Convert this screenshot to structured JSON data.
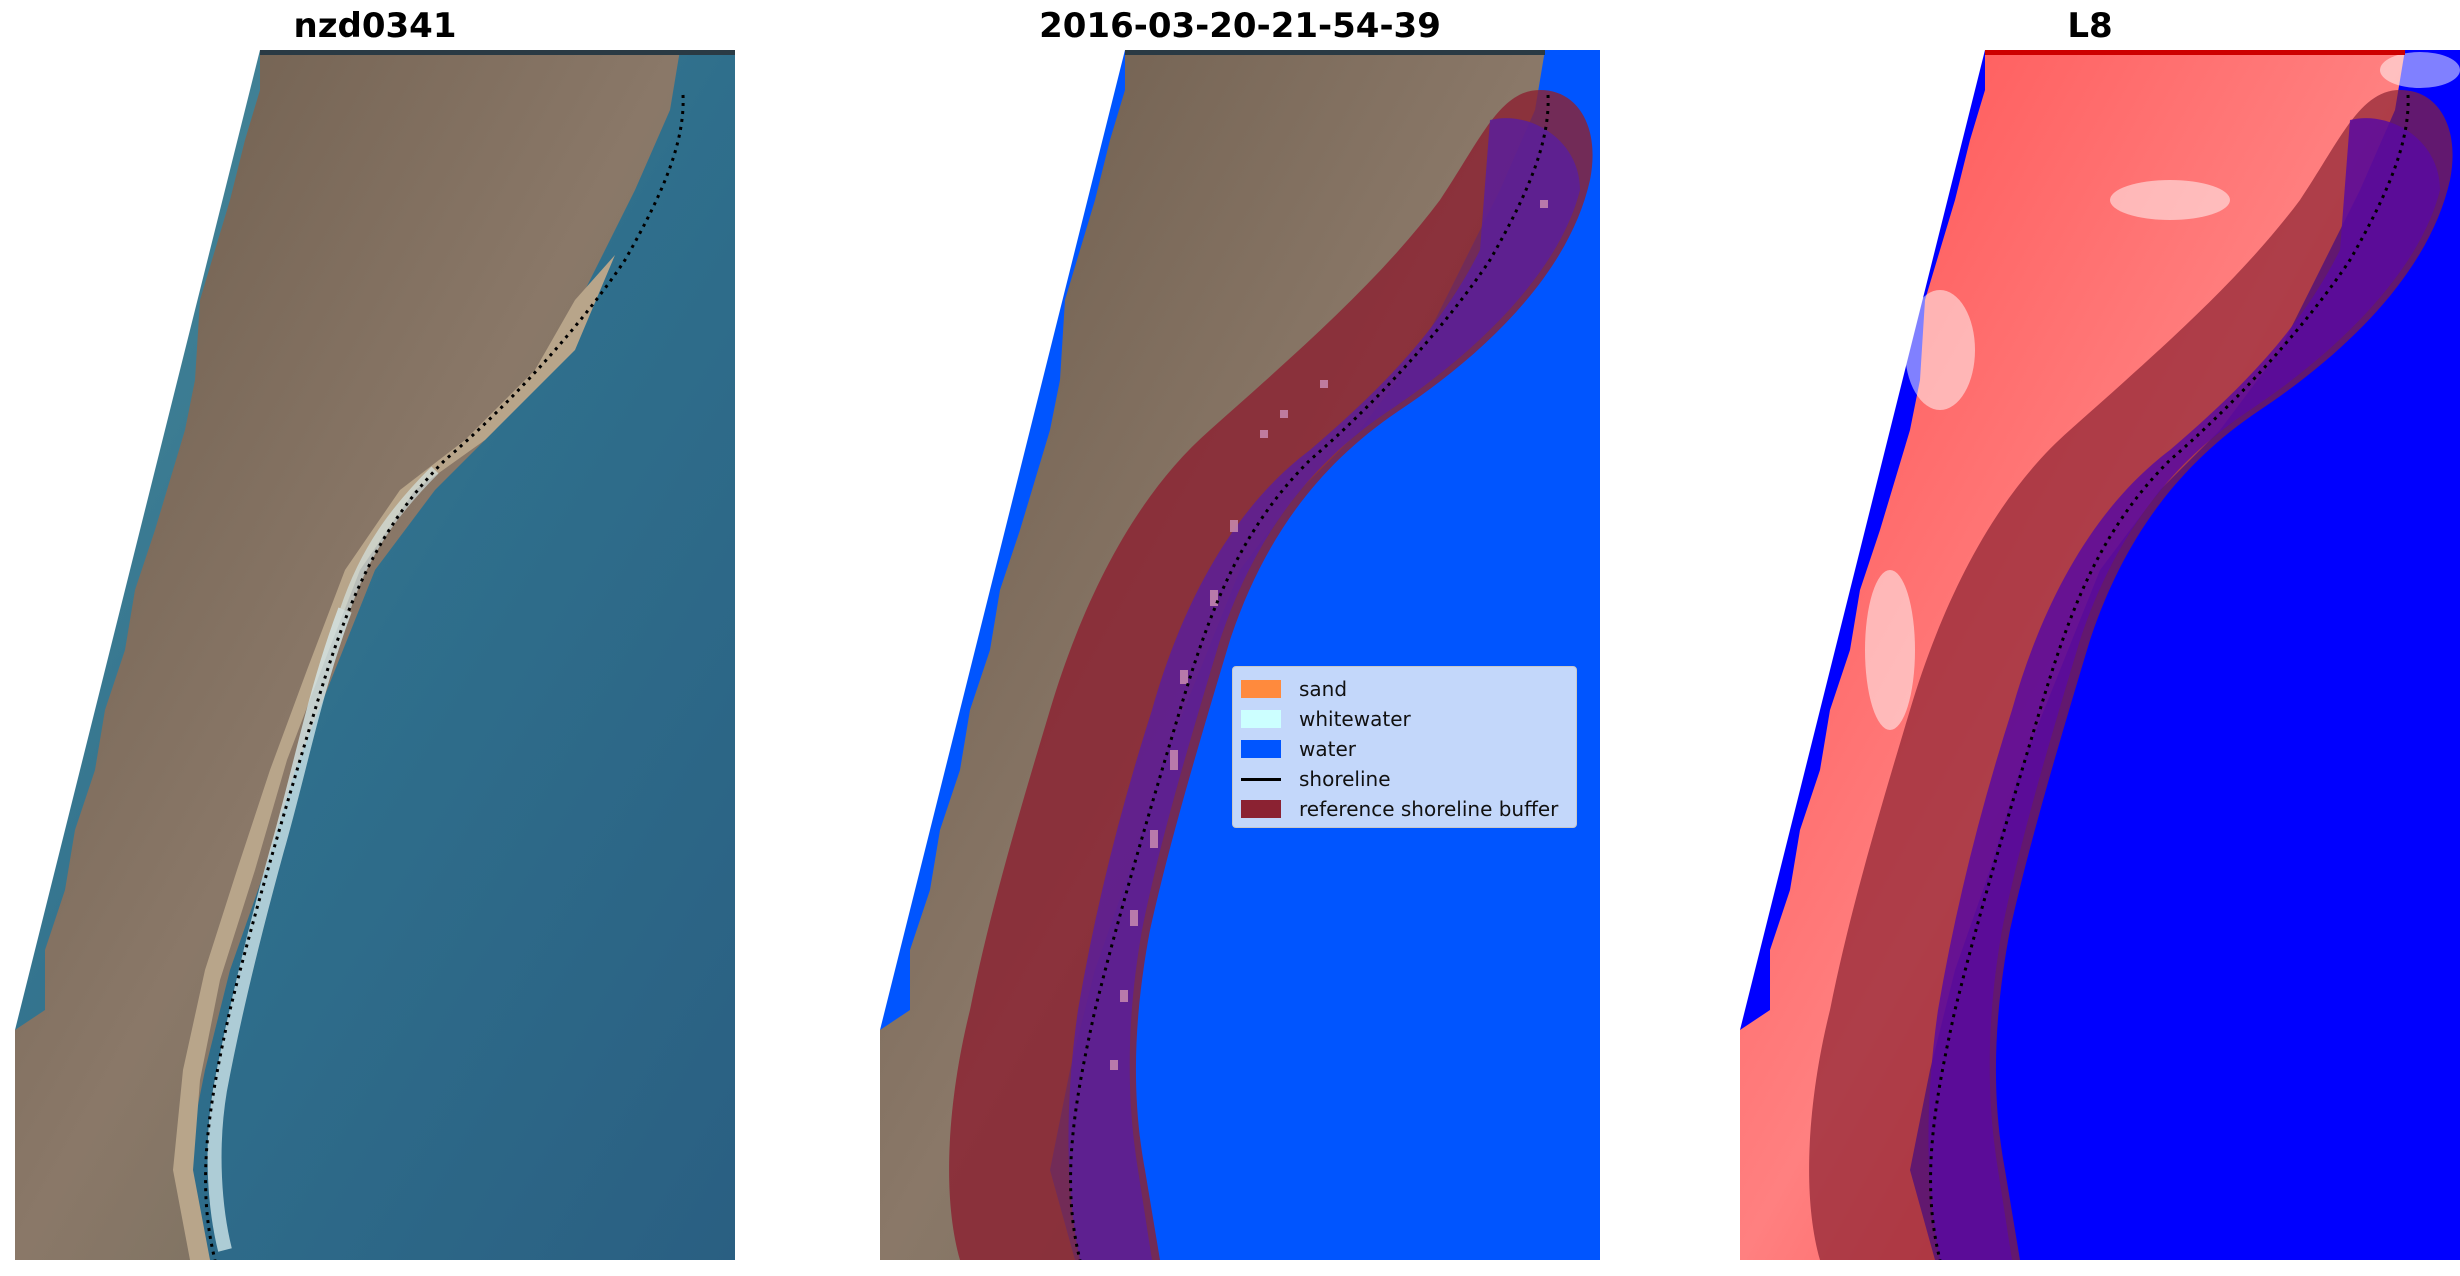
{
  "panels": [
    {
      "title": "nzd0341"
    },
    {
      "title": "2016-03-20-21-54-39"
    },
    {
      "title": "L8"
    }
  ],
  "legend": {
    "items": [
      {
        "label": "sand",
        "color": "#ff8a3d",
        "kind": "patch"
      },
      {
        "label": "whitewater",
        "color": "#ccffff",
        "kind": "patch"
      },
      {
        "label": "water",
        "color": "#0055ff",
        "kind": "patch"
      },
      {
        "label": "shoreline",
        "color": "#000000",
        "kind": "line"
      },
      {
        "label": "reference shoreline buffer",
        "color": "#8b2232",
        "kind": "patch"
      }
    ]
  },
  "colors": {
    "land_brown": "#8a7a6a",
    "ocean_blue": "#2f6f8c",
    "water_class": "#0055ff",
    "buffer": "#8b2232",
    "index_land": "#ff3030",
    "index_water": "#0000ff"
  }
}
